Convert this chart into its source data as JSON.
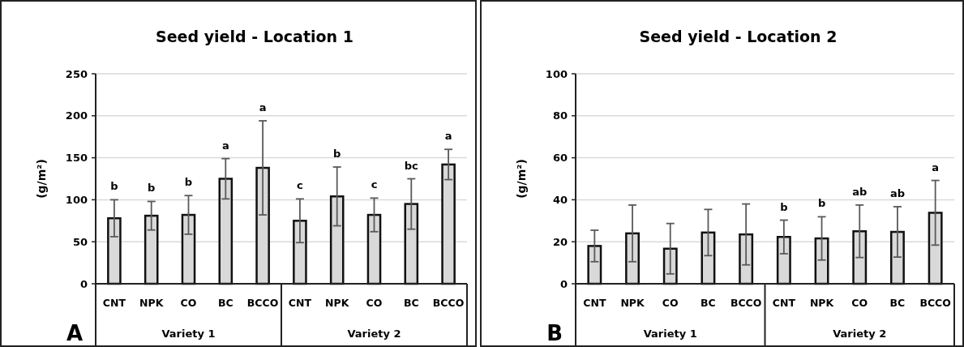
{
  "chart_data": [
    {
      "type": "bar",
      "title": "Seed yield - Location 1",
      "ylabel": "(g/m²)",
      "categories": [
        "CNT",
        "NPK",
        "CO",
        "BC",
        "BCCO",
        "CNT",
        "NPK",
        "CO",
        "BC",
        "BCCO"
      ],
      "values": [
        78,
        81,
        82,
        125,
        138,
        75,
        104,
        82,
        95,
        142
      ],
      "errors": [
        22,
        17,
        23,
        24,
        56,
        26,
        35,
        20,
        30,
        18
      ],
      "color": "#d9d9d9",
      "ylim": [
        0,
        250
      ],
      "yticks": [
        0,
        50,
        100,
        150,
        200,
        250
      ],
      "grid": "y",
      "annotations": [
        "A",
        "Variety 1",
        "Variety 2",
        "b",
        "b",
        "b",
        "a",
        "a",
        "c",
        "b",
        "c",
        "bc",
        "a"
      ]
    },
    {
      "type": "bar",
      "title": "Seed yield - Location 2",
      "ylabel": "(g/m²)",
      "categories": [
        "CNT",
        "NPK",
        "CO",
        "BC",
        "BCCO",
        "CNT",
        "NPK",
        "CO",
        "BC",
        "BCCO"
      ],
      "values": [
        18,
        24,
        16.7,
        24.4,
        23.5,
        22.3,
        21.6,
        25,
        24.7,
        33.8
      ],
      "errors": [
        7.5,
        13.5,
        12,
        11,
        14.5,
        8,
        10.3,
        12.5,
        12,
        15.4
      ],
      "color": "#d9d9d9",
      "ylim": [
        0,
        100
      ],
      "yticks": [
        0,
        20,
        40,
        60,
        80,
        100
      ],
      "grid": "y",
      "annotations": [
        "B",
        "Variety 1",
        "Variety 2",
        "b",
        "b",
        "ab",
        "ab",
        "a"
      ]
    }
  ]
}
